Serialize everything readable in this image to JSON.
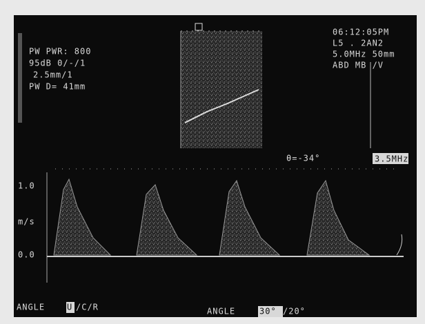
{
  "header_left": {
    "lines": [
      "PW PWR: 800",
      "95dB 0/-/1",
      "2.5mm/1",
      "PW D= 41mm"
    ]
  },
  "header_right": {
    "lines": [
      "06:12:05PM",
      "L5 .  2AN2",
      "5.0MHz  50mm",
      "ABD MB  /V"
    ]
  },
  "doppler": {
    "angle_readout": "θ=-34°",
    "frequency": "3.5MHz",
    "scale": {
      "top": "1.0",
      "unit": "m/s",
      "baseline": "0.0"
    }
  },
  "footer": {
    "left_label": "ANGLE",
    "left_selected": "U",
    "left_rest": "/C/R",
    "right_label": "ANGLE",
    "right_selected": "30°",
    "right_rest": "/20°"
  }
}
